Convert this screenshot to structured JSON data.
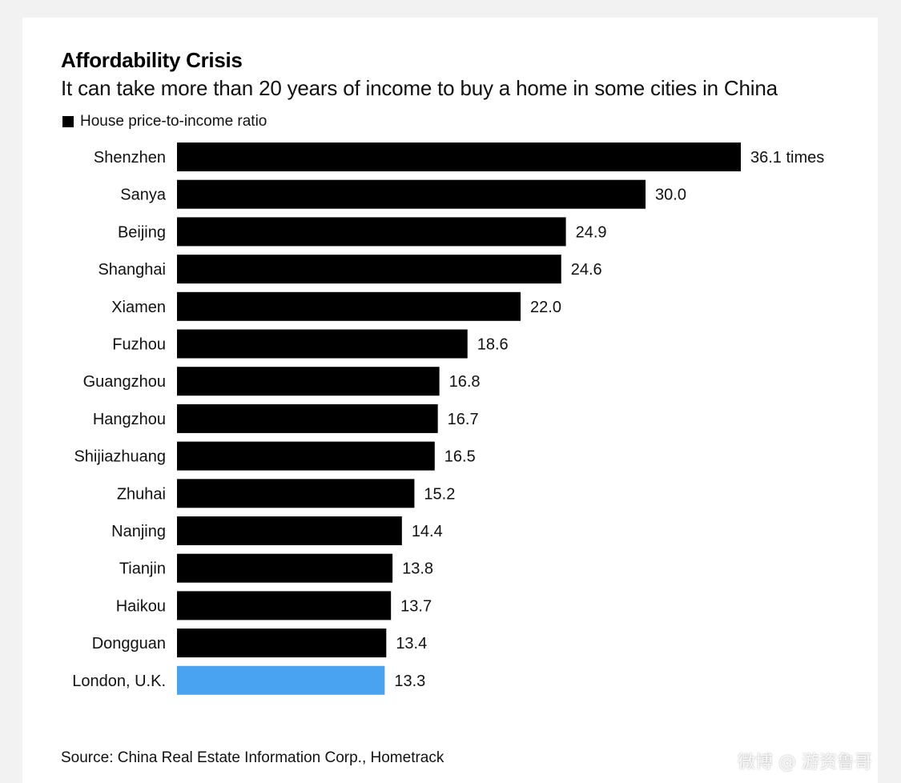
{
  "title": "Affordability Crisis",
  "subtitle": "It can take more than 20 years of income to buy a home in some cities in China",
  "legend_label": "House price-to-income ratio",
  "source": "Source: China Real Estate Information Corp., Hometrack",
  "watermark": "微博 @ 游资鲁哥",
  "colors": {
    "primary": "#000000",
    "highlight": "#4aa3f0"
  },
  "chart_data": {
    "type": "bar",
    "orientation": "horizontal",
    "title": "Affordability Crisis",
    "subtitle": "It can take more than 20 years of income to buy a home in some cities in China",
    "series": [
      {
        "name": "House price-to-income ratio",
        "values": [
          36.1,
          30.0,
          24.9,
          24.6,
          22.0,
          18.6,
          16.8,
          16.7,
          16.5,
          15.2,
          14.4,
          13.8,
          13.7,
          13.4,
          13.3
        ]
      }
    ],
    "categories": [
      "Shenzhen",
      "Sanya",
      "Beijing",
      "Shanghai",
      "Xiamen",
      "Fuzhou",
      "Guangzhou",
      "Hangzhou",
      "Shijiazhuang",
      "Zhuhai",
      "Nanjing",
      "Tianjin",
      "Haikou",
      "Dongguan",
      "London, U.K."
    ],
    "value_labels": [
      "36.1 times",
      "30.0",
      "24.9",
      "24.6",
      "22.0",
      "18.6",
      "16.8",
      "16.7",
      "16.5",
      "15.2",
      "14.4",
      "13.8",
      "13.7",
      "13.4",
      "13.3"
    ],
    "highlight_index": 14,
    "xlim": [
      0,
      36.1
    ],
    "grid": false,
    "legend_position": "top-left"
  }
}
